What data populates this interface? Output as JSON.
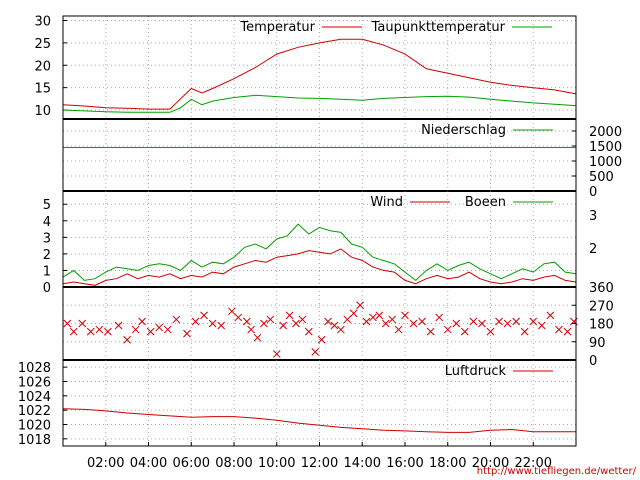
{
  "source_credit": "http://www.tiefliegen.de/wetter/",
  "colors": {
    "red": "#cc0000",
    "green": "#00a000",
    "grid": "#aaaaaa",
    "frame": "#000000"
  },
  "x_ticks": [
    "02:00",
    "04:00",
    "06:00",
    "08:00",
    "10:00",
    "12:00",
    "14:00",
    "16:00",
    "18:00",
    "20:00",
    "22:00"
  ],
  "chart_data": [
    {
      "type": "line",
      "panel": "temperature",
      "x_hours": [
        0,
        1,
        2,
        3,
        4,
        5,
        5.5,
        6,
        6.5,
        7,
        8,
        9,
        10,
        11,
        12,
        13,
        14,
        15,
        16,
        17,
        18,
        19,
        20,
        21,
        22,
        23,
        24
      ],
      "ylim": [
        8,
        31
      ],
      "y_ticks": [
        10,
        15,
        20,
        25,
        30
      ],
      "legend_position": "top-right",
      "series": [
        {
          "name": "Temperatur",
          "color": "red",
          "values": [
            11.2,
            10.9,
            10.5,
            10.4,
            10.2,
            10.2,
            12.5,
            14.8,
            13.8,
            14.8,
            17.0,
            19.5,
            22.5,
            24.0,
            25.0,
            25.8,
            25.8,
            24.5,
            22.5,
            19.2,
            18.2,
            17.2,
            16.2,
            15.5,
            15.0,
            14.5,
            13.6
          ]
        },
        {
          "name": "Taupunkttemperatur",
          "color": "green",
          "values": [
            10.0,
            9.8,
            9.6,
            9.5,
            9.5,
            9.5,
            10.5,
            12.4,
            11.2,
            12.0,
            12.8,
            13.3,
            13.0,
            12.7,
            12.6,
            12.4,
            12.2,
            12.6,
            12.8,
            13.0,
            13.1,
            12.9,
            12.4,
            12.0,
            11.6,
            11.3,
            11.0
          ]
        }
      ]
    },
    {
      "type": "line",
      "panel": "precipitation",
      "x_hours": [
        0,
        24
      ],
      "ylim": [
        0,
        2400
      ],
      "y_ticks": [
        0,
        500,
        1000,
        1500,
        2000
      ],
      "legend_position": "top-right",
      "series": [
        {
          "name": "Niederschlag",
          "color": "green",
          "values": [
            1450,
            1450
          ]
        }
      ]
    },
    {
      "type": "line",
      "panel": "wind",
      "x_hours": [
        0,
        0.5,
        1,
        1.5,
        2,
        2.5,
        3,
        3.5,
        4,
        4.5,
        5,
        5.5,
        6,
        6.5,
        7,
        7.5,
        8,
        8.5,
        9,
        9.5,
        10,
        10.5,
        11,
        11.5,
        12,
        12.5,
        13,
        13.5,
        14,
        14.5,
        15,
        15.5,
        16,
        16.5,
        17,
        17.5,
        18,
        18.5,
        19,
        19.5,
        20,
        20.5,
        21,
        21.5,
        22,
        22.5,
        23,
        23.5,
        24
      ],
      "ylim": [
        0,
        5.8
      ],
      "y_ticks_left": [
        0,
        1,
        2,
        3,
        4,
        5
      ],
      "y_ticks_right": [
        2,
        3
      ],
      "legend_position": "top-right",
      "series": [
        {
          "name": "Wind",
          "color": "red",
          "values": [
            0.2,
            0.3,
            0.2,
            0.1,
            0.4,
            0.5,
            0.8,
            0.5,
            0.7,
            0.6,
            0.8,
            0.5,
            0.7,
            0.6,
            0.9,
            0.8,
            1.2,
            1.4,
            1.6,
            1.5,
            1.8,
            1.9,
            2.0,
            2.2,
            2.1,
            2.0,
            2.3,
            1.8,
            1.6,
            1.2,
            1.0,
            0.9,
            0.4,
            0.2,
            0.5,
            0.7,
            0.5,
            0.6,
            0.9,
            0.5,
            0.3,
            0.2,
            0.3,
            0.5,
            0.4,
            0.6,
            0.7,
            0.4,
            0.3
          ]
        },
        {
          "name": "Boeen",
          "color": "green",
          "values": [
            0.6,
            1.0,
            0.4,
            0.5,
            0.9,
            1.2,
            1.1,
            1.0,
            1.3,
            1.4,
            1.3,
            1.0,
            1.6,
            1.2,
            1.5,
            1.4,
            1.8,
            2.4,
            2.6,
            2.3,
            2.9,
            3.1,
            3.8,
            3.2,
            3.6,
            3.4,
            3.3,
            2.6,
            2.4,
            1.8,
            1.6,
            1.4,
            0.9,
            0.4,
            1.0,
            1.4,
            1.0,
            1.3,
            1.5,
            1.1,
            0.8,
            0.5,
            0.8,
            1.1,
            0.9,
            1.4,
            1.5,
            0.9,
            0.8
          ]
        }
      ]
    },
    {
      "type": "scatter",
      "panel": "wind_direction",
      "ylim": [
        0,
        360
      ],
      "y_ticks": [
        0,
        90,
        180,
        270,
        360
      ],
      "series": [
        {
          "name": "",
          "color": "red",
          "x_hours": [
            0.2,
            0.5,
            0.9,
            1.3,
            1.7,
            2.1,
            2.6,
            3.0,
            3.4,
            3.7,
            4.1,
            4.5,
            4.9,
            5.3,
            5.8,
            6.2,
            6.6,
            7.0,
            7.4,
            7.9,
            8.2,
            8.6,
            8.8,
            9.1,
            9.4,
            9.7,
            10.0,
            10.3,
            10.6,
            10.9,
            11.2,
            11.5,
            11.8,
            12.1,
            12.4,
            12.7,
            13.0,
            13.3,
            13.6,
            13.9,
            14.2,
            14.5,
            14.8,
            15.1,
            15.4,
            15.7,
            16.0,
            16.4,
            16.8,
            17.2,
            17.6,
            18.0,
            18.4,
            18.8,
            19.2,
            19.6,
            20.0,
            20.4,
            20.8,
            21.2,
            21.6,
            22.0,
            22.4,
            22.8,
            23.2,
            23.6,
            23.9
          ],
          "values": [
            180,
            140,
            180,
            140,
            150,
            140,
            170,
            100,
            150,
            190,
            140,
            160,
            150,
            200,
            130,
            190,
            220,
            180,
            170,
            240,
            210,
            190,
            150,
            110,
            180,
            200,
            30,
            170,
            220,
            180,
            200,
            140,
            40,
            100,
            190,
            170,
            150,
            200,
            230,
            270,
            190,
            210,
            220,
            180,
            200,
            150,
            220,
            180,
            190,
            140,
            210,
            150,
            180,
            140,
            190,
            180,
            140,
            190,
            180,
            190,
            140,
            190,
            170,
            220,
            150,
            140,
            190
          ]
        }
      ]
    },
    {
      "type": "line",
      "panel": "pressure",
      "x_hours": [
        0,
        1,
        2,
        3,
        4,
        5,
        6,
        7,
        8,
        9,
        10,
        11,
        12,
        13,
        14,
        15,
        16,
        17,
        18,
        19,
        20,
        21,
        22,
        23,
        24
      ],
      "ylim": [
        1017,
        1029
      ],
      "y_ticks": [
        1018,
        1020,
        1022,
        1024,
        1026,
        1028
      ],
      "legend_position": "top-right",
      "series": [
        {
          "name": "Luftdruck",
          "color": "red",
          "values": [
            1022.2,
            1022.1,
            1021.9,
            1021.6,
            1021.4,
            1021.2,
            1021.0,
            1021.1,
            1021.1,
            1020.9,
            1020.6,
            1020.2,
            1019.9,
            1019.6,
            1019.4,
            1019.2,
            1019.1,
            1019.0,
            1018.9,
            1018.9,
            1019.2,
            1019.3,
            1019.0,
            1019.0,
            1019.0
          ]
        }
      ]
    }
  ]
}
